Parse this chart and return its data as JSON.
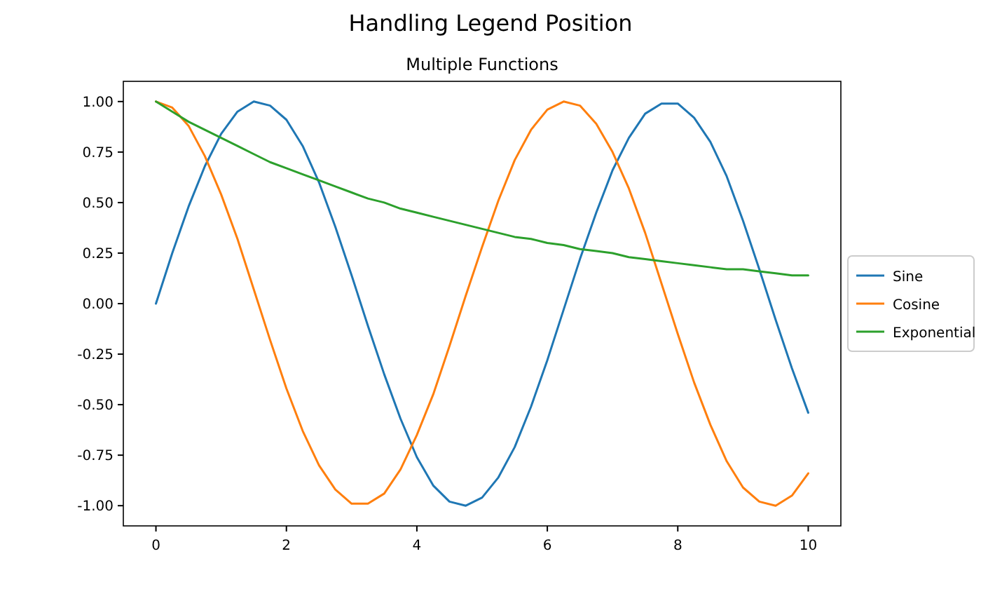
{
  "chart_data": {
    "type": "line",
    "title": "Handling Legend Position",
    "subtitle": "Multiple Functions",
    "x": [
      0,
      0.25,
      0.5,
      0.75,
      1,
      1.25,
      1.5,
      1.75,
      2,
      2.25,
      2.5,
      2.75,
      3,
      3.25,
      3.5,
      3.75,
      4,
      4.25,
      4.5,
      4.75,
      5,
      5.25,
      5.5,
      5.75,
      6,
      6.25,
      6.5,
      6.75,
      7,
      7.25,
      7.5,
      7.75,
      8,
      8.25,
      8.5,
      8.75,
      9,
      9.25,
      9.5,
      9.75,
      10
    ],
    "series": [
      {
        "name": "Sine",
        "color": "#1f77b4",
        "values": [
          0,
          0.25,
          0.48,
          0.68,
          0.84,
          0.95,
          1,
          0.98,
          0.91,
          0.78,
          0.6,
          0.38,
          0.14,
          -0.11,
          -0.35,
          -0.57,
          -0.76,
          -0.9,
          -0.98,
          -1,
          -0.96,
          -0.86,
          -0.71,
          -0.51,
          -0.28,
          -0.03,
          0.22,
          0.45,
          0.66,
          0.82,
          0.94,
          0.99,
          0.99,
          0.92,
          0.8,
          0.63,
          0.41,
          0.17,
          -0.08,
          -0.32,
          -0.54
        ]
      },
      {
        "name": "Cosine",
        "color": "#ff7f0e",
        "values": [
          1,
          0.97,
          0.88,
          0.73,
          0.54,
          0.32,
          0.07,
          -0.18,
          -0.42,
          -0.63,
          -0.8,
          -0.92,
          -0.99,
          -0.99,
          -0.94,
          -0.82,
          -0.65,
          -0.45,
          -0.21,
          0.04,
          0.28,
          0.51,
          0.71,
          0.86,
          0.96,
          1,
          0.98,
          0.89,
          0.75,
          0.57,
          0.35,
          0.1,
          -0.15,
          -0.39,
          -0.6,
          -0.78,
          -0.91,
          -0.98,
          -1,
          -0.95,
          -0.84
        ]
      },
      {
        "name": "Exponential",
        "color": "#2ca02c",
        "values": [
          1,
          0.95,
          0.9,
          0.86,
          0.82,
          0.78,
          0.74,
          0.7,
          0.67,
          0.64,
          0.61,
          0.58,
          0.55,
          0.52,
          0.5,
          0.47,
          0.45,
          0.43,
          0.41,
          0.39,
          0.37,
          0.35,
          0.33,
          0.32,
          0.3,
          0.29,
          0.27,
          0.26,
          0.25,
          0.23,
          0.22,
          0.21,
          0.2,
          0.19,
          0.18,
          0.17,
          0.17,
          0.16,
          0.15,
          0.14,
          0.14
        ]
      }
    ],
    "xlim": [
      -0.5,
      10.5
    ],
    "xticks": [
      0,
      2,
      4,
      6,
      8,
      10
    ],
    "ylim": [
      -1.1,
      1.1
    ],
    "yticks": [
      {
        "value": -1,
        "label": "-1.00"
      },
      {
        "value": -0.75,
        "label": "-0.75"
      },
      {
        "value": -0.5,
        "label": "-0.50"
      },
      {
        "value": -0.25,
        "label": "-0.25"
      },
      {
        "value": 0,
        "label": "0.00"
      },
      {
        "value": 0.25,
        "label": "0.25"
      },
      {
        "value": 0.5,
        "label": "0.50"
      },
      {
        "value": 0.75,
        "label": "0.75"
      },
      {
        "value": 1,
        "label": "1.00"
      }
    ],
    "grid": false,
    "legend": "right",
    "marker": "none",
    "line_style": "solid"
  }
}
